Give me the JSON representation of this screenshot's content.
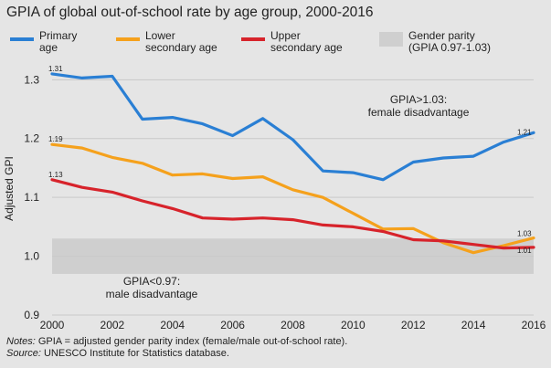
{
  "title": "GPIA of global out-of-school rate by age group, 2000-2016",
  "legend": [
    {
      "label_line1": "Primary",
      "label_line2": "age",
      "color": "#2a7fd4",
      "kind": "line"
    },
    {
      "label_line1": "Lower",
      "label_line2": "secondary age",
      "color": "#f5a11c",
      "kind": "line"
    },
    {
      "label_line1": "Upper",
      "label_line2": "secondary age",
      "color": "#d7232b",
      "kind": "line"
    },
    {
      "label_line1": "Gender parity",
      "label_line2": "(GPIA 0.97-1.03)",
      "color": "#cfcfcf",
      "kind": "band"
    }
  ],
  "notes": {
    "notes_prefix": "Notes:",
    "notes_text": " GPIA = adjusted gender parity index (female/male out-of-school rate).",
    "source_prefix": "Source:",
    "source_text": " UNESCO Institute for Statistics database."
  },
  "chart_data": {
    "type": "line",
    "title": "GPIA of global out-of-school rate by age group, 2000-2016",
    "xlabel": "",
    "ylabel": "Adjusted GPI",
    "x": [
      2000,
      2001,
      2002,
      2003,
      2004,
      2005,
      2006,
      2007,
      2008,
      2009,
      2010,
      2011,
      2012,
      2013,
      2014,
      2015,
      2016
    ],
    "xticks": [
      "2000",
      "2002",
      "2004",
      "2006",
      "2008",
      "2010",
      "2012",
      "2014",
      "2016"
    ],
    "ylim": [
      0.9,
      1.33
    ],
    "yticks": [
      "0.9",
      "1.0",
      "1.1",
      "1.2",
      "1.3"
    ],
    "grid": "horizontal",
    "parity_band": [
      0.97,
      1.03
    ],
    "series": [
      {
        "name": "Primary age",
        "color": "#2a7fd4",
        "values": [
          1.31,
          1.303,
          1.306,
          1.233,
          1.236,
          1.225,
          1.205,
          1.234,
          1.198,
          1.145,
          1.142,
          1.13,
          1.16,
          1.167,
          1.17,
          1.194,
          1.21
        ]
      },
      {
        "name": "Lower secondary age",
        "color": "#f5a11c",
        "values": [
          1.19,
          1.184,
          1.168,
          1.158,
          1.138,
          1.14,
          1.132,
          1.135,
          1.113,
          1.1,
          1.073,
          1.046,
          1.047,
          1.023,
          1.006,
          1.018,
          1.031
        ]
      },
      {
        "name": "Upper secondary age",
        "color": "#d7232b",
        "values": [
          1.13,
          1.117,
          1.109,
          1.094,
          1.081,
          1.065,
          1.063,
          1.065,
          1.062,
          1.053,
          1.05,
          1.042,
          1.028,
          1.026,
          1.02,
          1.014,
          1.015
        ]
      }
    ],
    "end_labels": {
      "start": [
        "1.31",
        "1.19",
        "1.13"
      ],
      "end": [
        "1.21",
        "1.03",
        "1.01"
      ]
    },
    "annotations": [
      {
        "line1": "GPIA>1.03:",
        "line2": "female disadvantage"
      },
      {
        "line1": "GPIA<0.97:",
        "line2": "male disadvantage"
      }
    ]
  }
}
